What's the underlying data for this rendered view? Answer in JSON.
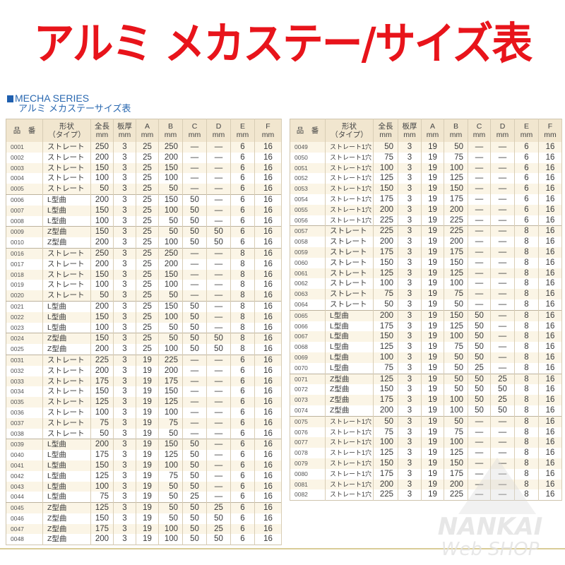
{
  "title": "アルミ メカステー/サイズ表",
  "series_label": "MECHA SERIES",
  "subtitle": "アルミ メカステーサイズ表",
  "headers": [
    {
      "l1": "品　番",
      "l2": ""
    },
    {
      "l1": "形状",
      "l2": "（タイプ）"
    },
    {
      "l1": "全長",
      "l2": "mm"
    },
    {
      "l1": "板厚",
      "l2": "mm"
    },
    {
      "l1": "A",
      "l2": "mm"
    },
    {
      "l1": "B",
      "l2": "mm"
    },
    {
      "l1": "C",
      "l2": "mm"
    },
    {
      "l1": "D",
      "l2": "mm"
    },
    {
      "l1": "E",
      "l2": "mm"
    },
    {
      "l1": "F",
      "l2": "mm"
    }
  ],
  "tables": [
    {
      "groups": [
        [
          [
            "0001",
            "ストレート",
            "250",
            "3",
            "25",
            "250",
            "—",
            "—",
            "6",
            "16"
          ],
          [
            "0002",
            "ストレート",
            "200",
            "3",
            "25",
            "200",
            "—",
            "—",
            "6",
            "16"
          ],
          [
            "0003",
            "ストレート",
            "150",
            "3",
            "25",
            "150",
            "—",
            "—",
            "6",
            "16"
          ],
          [
            "0004",
            "ストレート",
            "100",
            "3",
            "25",
            "100",
            "—",
            "—",
            "6",
            "16"
          ],
          [
            "0005",
            "ストレート",
            "50",
            "3",
            "25",
            "50",
            "—",
            "—",
            "6",
            "16"
          ]
        ],
        [
          [
            "0006",
            "L型曲",
            "200",
            "3",
            "25",
            "150",
            "50",
            "—",
            "6",
            "16"
          ],
          [
            "0007",
            "L型曲",
            "150",
            "3",
            "25",
            "100",
            "50",
            "—",
            "6",
            "16"
          ],
          [
            "0008",
            "L型曲",
            "100",
            "3",
            "25",
            "50",
            "50",
            "—",
            "6",
            "16"
          ]
        ],
        [
          [
            "0009",
            "Z型曲",
            "150",
            "3",
            "25",
            "50",
            "50",
            "50",
            "6",
            "16"
          ],
          [
            "0010",
            "Z型曲",
            "200",
            "3",
            "25",
            "100",
            "50",
            "50",
            "6",
            "16"
          ]
        ],
        [
          [
            "0016",
            "ストレート",
            "250",
            "3",
            "25",
            "250",
            "—",
            "—",
            "8",
            "16"
          ],
          [
            "0017",
            "ストレート",
            "200",
            "3",
            "25",
            "200",
            "—",
            "—",
            "8",
            "16"
          ],
          [
            "0018",
            "ストレート",
            "150",
            "3",
            "25",
            "150",
            "—",
            "—",
            "8",
            "16"
          ],
          [
            "0019",
            "ストレート",
            "100",
            "3",
            "25",
            "100",
            "—",
            "—",
            "8",
            "16"
          ],
          [
            "0020",
            "ストレート",
            "50",
            "3",
            "25",
            "50",
            "—",
            "—",
            "8",
            "16"
          ]
        ],
        [
          [
            "0021",
            "L型曲",
            "200",
            "3",
            "25",
            "150",
            "50",
            "—",
            "8",
            "16"
          ],
          [
            "0022",
            "L型曲",
            "150",
            "3",
            "25",
            "100",
            "50",
            "—",
            "8",
            "16"
          ],
          [
            "0023",
            "L型曲",
            "100",
            "3",
            "25",
            "50",
            "50",
            "—",
            "8",
            "16"
          ]
        ],
        [
          [
            "0024",
            "Z型曲",
            "150",
            "3",
            "25",
            "50",
            "50",
            "50",
            "8",
            "16"
          ],
          [
            "0025",
            "Z型曲",
            "200",
            "3",
            "25",
            "100",
            "50",
            "50",
            "8",
            "16"
          ]
        ],
        [
          [
            "0031",
            "ストレート",
            "225",
            "3",
            "19",
            "225",
            "—",
            "—",
            "6",
            "16"
          ],
          [
            "0032",
            "ストレート",
            "200",
            "3",
            "19",
            "200",
            "—",
            "—",
            "6",
            "16"
          ],
          [
            "0033",
            "ストレート",
            "175",
            "3",
            "19",
            "175",
            "—",
            "—",
            "6",
            "16"
          ],
          [
            "0034",
            "ストレート",
            "150",
            "3",
            "19",
            "150",
            "—",
            "—",
            "6",
            "16"
          ],
          [
            "0035",
            "ストレート",
            "125",
            "3",
            "19",
            "125",
            "—",
            "—",
            "6",
            "16"
          ],
          [
            "0036",
            "ストレート",
            "100",
            "3",
            "19",
            "100",
            "—",
            "—",
            "6",
            "16"
          ],
          [
            "0037",
            "ストレート",
            "75",
            "3",
            "19",
            "75",
            "—",
            "—",
            "6",
            "16"
          ],
          [
            "0038",
            "ストレート",
            "50",
            "3",
            "19",
            "50",
            "—",
            "—",
            "6",
            "16"
          ]
        ],
        [
          [
            "0039",
            "L型曲",
            "200",
            "3",
            "19",
            "150",
            "50",
            "—",
            "6",
            "16"
          ],
          [
            "0040",
            "L型曲",
            "175",
            "3",
            "19",
            "125",
            "50",
            "—",
            "6",
            "16"
          ],
          [
            "0041",
            "L型曲",
            "150",
            "3",
            "19",
            "100",
            "50",
            "—",
            "6",
            "16"
          ],
          [
            "0042",
            "L型曲",
            "125",
            "3",
            "19",
            "75",
            "50",
            "—",
            "6",
            "16"
          ],
          [
            "0043",
            "L型曲",
            "100",
            "3",
            "19",
            "50",
            "50",
            "—",
            "6",
            "16"
          ],
          [
            "0044",
            "L型曲",
            "75",
            "3",
            "19",
            "50",
            "25",
            "—",
            "6",
            "16"
          ]
        ],
        [
          [
            "0045",
            "Z型曲",
            "125",
            "3",
            "19",
            "50",
            "50",
            "25",
            "6",
            "16"
          ],
          [
            "0046",
            "Z型曲",
            "150",
            "3",
            "19",
            "50",
            "50",
            "50",
            "6",
            "16"
          ],
          [
            "0047",
            "Z型曲",
            "175",
            "3",
            "19",
            "100",
            "50",
            "25",
            "6",
            "16"
          ],
          [
            "0048",
            "Z型曲",
            "200",
            "3",
            "19",
            "100",
            "50",
            "50",
            "6",
            "16"
          ]
        ]
      ]
    },
    {
      "groups": [
        [
          [
            "0049",
            "ストレート1穴",
            "50",
            "3",
            "19",
            "50",
            "—",
            "—",
            "6",
            "16"
          ],
          [
            "0050",
            "ストレート1穴",
            "75",
            "3",
            "19",
            "75",
            "—",
            "—",
            "6",
            "16"
          ],
          [
            "0051",
            "ストレート1穴",
            "100",
            "3",
            "19",
            "100",
            "—",
            "—",
            "6",
            "16"
          ],
          [
            "0052",
            "ストレート1穴",
            "125",
            "3",
            "19",
            "125",
            "—",
            "—",
            "6",
            "16"
          ],
          [
            "0053",
            "ストレート1穴",
            "150",
            "3",
            "19",
            "150",
            "—",
            "—",
            "6",
            "16"
          ],
          [
            "0054",
            "ストレート1穴",
            "175",
            "3",
            "19",
            "175",
            "—",
            "—",
            "6",
            "16"
          ],
          [
            "0055",
            "ストレート1穴",
            "200",
            "3",
            "19",
            "200",
            "—",
            "—",
            "6",
            "16"
          ],
          [
            "0056",
            "ストレート1穴",
            "225",
            "3",
            "19",
            "225",
            "—",
            "—",
            "6",
            "16"
          ]
        ],
        [
          [
            "0057",
            "ストレート",
            "225",
            "3",
            "19",
            "225",
            "—",
            "—",
            "8",
            "16"
          ],
          [
            "0058",
            "ストレート",
            "200",
            "3",
            "19",
            "200",
            "—",
            "—",
            "8",
            "16"
          ],
          [
            "0059",
            "ストレート",
            "175",
            "3",
            "19",
            "175",
            "—",
            "—",
            "8",
            "16"
          ],
          [
            "0060",
            "ストレート",
            "150",
            "3",
            "19",
            "150",
            "—",
            "—",
            "8",
            "16"
          ],
          [
            "0061",
            "ストレート",
            "125",
            "3",
            "19",
            "125",
            "—",
            "—",
            "8",
            "16"
          ],
          [
            "0062",
            "ストレート",
            "100",
            "3",
            "19",
            "100",
            "—",
            "—",
            "8",
            "16"
          ],
          [
            "0063",
            "ストレート",
            "75",
            "3",
            "19",
            "75",
            "—",
            "—",
            "8",
            "16"
          ],
          [
            "0064",
            "ストレート",
            "50",
            "3",
            "19",
            "50",
            "—",
            "—",
            "8",
            "16"
          ]
        ],
        [
          [
            "0065",
            "L型曲",
            "200",
            "3",
            "19",
            "150",
            "50",
            "—",
            "8",
            "16"
          ],
          [
            "0066",
            "L型曲",
            "175",
            "3",
            "19",
            "125",
            "50",
            "—",
            "8",
            "16"
          ],
          [
            "0067",
            "L型曲",
            "150",
            "3",
            "19",
            "100",
            "50",
            "—",
            "8",
            "16"
          ],
          [
            "0068",
            "L型曲",
            "125",
            "3",
            "19",
            "75",
            "50",
            "—",
            "8",
            "16"
          ],
          [
            "0069",
            "L型曲",
            "100",
            "3",
            "19",
            "50",
            "50",
            "—",
            "8",
            "16"
          ],
          [
            "0070",
            "L型曲",
            "75",
            "3",
            "19",
            "50",
            "25",
            "—",
            "8",
            "16"
          ]
        ],
        [
          [
            "0071",
            "Z型曲",
            "125",
            "3",
            "19",
            "50",
            "50",
            "25",
            "8",
            "16"
          ],
          [
            "0072",
            "Z型曲",
            "150",
            "3",
            "19",
            "50",
            "50",
            "50",
            "8",
            "16"
          ],
          [
            "0073",
            "Z型曲",
            "175",
            "3",
            "19",
            "100",
            "50",
            "25",
            "8",
            "16"
          ],
          [
            "0074",
            "Z型曲",
            "200",
            "3",
            "19",
            "100",
            "50",
            "50",
            "8",
            "16"
          ]
        ],
        [
          [
            "0075",
            "ストレート1穴",
            "50",
            "3",
            "19",
            "50",
            "—",
            "—",
            "8",
            "16"
          ],
          [
            "0076",
            "ストレート1穴",
            "75",
            "3",
            "19",
            "75",
            "—",
            "—",
            "8",
            "16"
          ],
          [
            "0077",
            "ストレート1穴",
            "100",
            "3",
            "19",
            "100",
            "—",
            "—",
            "8",
            "16"
          ],
          [
            "0078",
            "ストレート1穴",
            "125",
            "3",
            "19",
            "125",
            "—",
            "—",
            "8",
            "16"
          ],
          [
            "0079",
            "ストレート1穴",
            "150",
            "3",
            "19",
            "150",
            "—",
            "—",
            "8",
            "16"
          ],
          [
            "0080",
            "ストレート1穴",
            "175",
            "3",
            "19",
            "175",
            "—",
            "—",
            "8",
            "16"
          ],
          [
            "0081",
            "ストレート1穴",
            "200",
            "3",
            "19",
            "200",
            "—",
            "—",
            "8",
            "16"
          ],
          [
            "0082",
            "ストレート1穴",
            "225",
            "3",
            "19",
            "225",
            "—",
            "—",
            "8",
            "16"
          ]
        ]
      ]
    }
  ],
  "watermark": {
    "line1": "NANKAI",
    "line2": "Web SHOP"
  },
  "colors": {
    "title": "#e8141b",
    "series": "#2a68b0",
    "header_bg": "#f1e6cf",
    "stripe": "#fbf5e6"
  }
}
